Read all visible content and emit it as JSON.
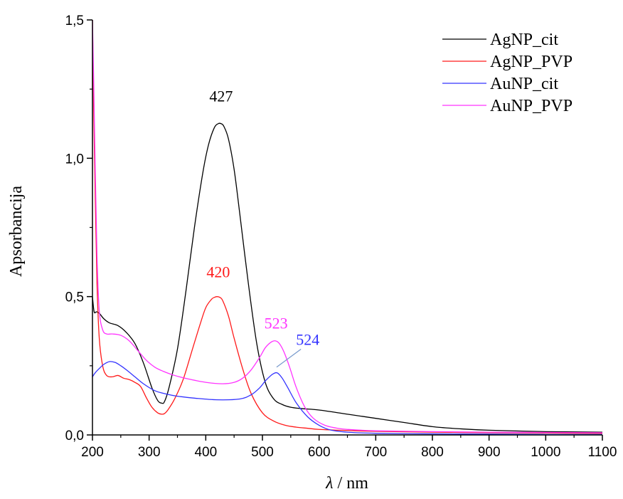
{
  "chart_data": {
    "type": "line",
    "xlabel_symbol": "λ",
    "xlabel_unit": " / nm",
    "ylabel": "Apsorbancija",
    "xlim": [
      200,
      1100
    ],
    "ylim": [
      0,
      1.5
    ],
    "x_ticks": [
      200,
      300,
      400,
      500,
      600,
      700,
      800,
      900,
      1000,
      1100
    ],
    "x_tick_labels": [
      "200",
      "300",
      "400",
      "500",
      "600",
      "700",
      "800",
      "900",
      "1000",
      "1100"
    ],
    "y_ticks": [
      0,
      0.5,
      1.0,
      1.5
    ],
    "y_tick_labels": [
      "0,0",
      "0,5",
      "1,0",
      "1,5"
    ],
    "legend_position": "top-right",
    "grid": false,
    "series": [
      {
        "name": "AgNP_cit",
        "color": "#000000",
        "x": [
          200,
          203,
          207,
          212,
          220,
          230,
          245,
          260,
          275,
          290,
          305,
          315,
          322,
          327,
          335,
          350,
          365,
          380,
          395,
          405,
          415,
          422,
          427,
          432,
          440,
          450,
          460,
          475,
          490,
          505,
          520,
          535,
          550,
          570,
          600,
          650,
          700,
          750,
          800,
          850,
          900,
          1000,
          1100
        ],
        "y": [
          0.5,
          0.445,
          0.445,
          0.44,
          0.42,
          0.405,
          0.395,
          0.37,
          0.33,
          0.26,
          0.17,
          0.125,
          0.115,
          0.12,
          0.17,
          0.31,
          0.52,
          0.75,
          0.95,
          1.05,
          1.11,
          1.125,
          1.125,
          1.115,
          1.07,
          0.96,
          0.8,
          0.55,
          0.33,
          0.19,
          0.13,
          0.11,
          0.1,
          0.095,
          0.09,
          0.075,
          0.06,
          0.045,
          0.03,
          0.022,
          0.017,
          0.012,
          0.01
        ]
      },
      {
        "name": "AgNP_PVP",
        "color": "#ff1a1a",
        "x": [
          200,
          202,
          205,
          208,
          212,
          218,
          225,
          235,
          245,
          255,
          265,
          275,
          285,
          295,
          305,
          315,
          322,
          327,
          333,
          345,
          360,
          375,
          390,
          400,
          410,
          415,
          420,
          425,
          430,
          440,
          450,
          465,
          480,
          500,
          520,
          540,
          560,
          580,
          600,
          650,
          700,
          800,
          900,
          1000,
          1100
        ],
        "y": [
          1.5,
          1.2,
          0.85,
          0.55,
          0.35,
          0.25,
          0.215,
          0.21,
          0.215,
          0.205,
          0.2,
          0.19,
          0.175,
          0.135,
          0.1,
          0.08,
          0.075,
          0.077,
          0.09,
          0.13,
          0.2,
          0.3,
          0.4,
          0.46,
          0.49,
          0.497,
          0.5,
          0.497,
          0.485,
          0.43,
          0.35,
          0.24,
          0.15,
          0.08,
          0.05,
          0.035,
          0.028,
          0.024,
          0.02,
          0.016,
          0.013,
          0.01,
          0.008,
          0.007,
          0.006
        ]
      },
      {
        "name": "AuNP_cit",
        "color": "#3333ff",
        "x": [
          200,
          205,
          212,
          220,
          230,
          240,
          250,
          260,
          275,
          290,
          310,
          330,
          350,
          380,
          420,
          460,
          480,
          495,
          505,
          515,
          520,
          524,
          528,
          535,
          545,
          560,
          580,
          600,
          620,
          650,
          700,
          800,
          900,
          1000,
          1100
        ],
        "y": [
          0.21,
          0.225,
          0.24,
          0.255,
          0.265,
          0.262,
          0.25,
          0.235,
          0.21,
          0.185,
          0.16,
          0.148,
          0.14,
          0.133,
          0.127,
          0.13,
          0.145,
          0.17,
          0.195,
          0.215,
          0.222,
          0.225,
          0.222,
          0.205,
          0.17,
          0.115,
          0.065,
          0.035,
          0.018,
          0.01,
          0.006,
          0.004,
          0.003,
          0.002,
          0.002
        ]
      },
      {
        "name": "AuNP_PVP",
        "color": "#ff33ff",
        "x": [
          200,
          202,
          205,
          208,
          212,
          218,
          225,
          235,
          250,
          265,
          280,
          295,
          310,
          325,
          345,
          370,
          400,
          430,
          450,
          465,
          480,
          495,
          505,
          515,
          523,
          530,
          538,
          548,
          560,
          575,
          590,
          610,
          630,
          650,
          700,
          800,
          900,
          1000,
          1100
        ],
        "y": [
          1.5,
          1.3,
          0.95,
          0.65,
          0.45,
          0.38,
          0.365,
          0.365,
          0.36,
          0.34,
          0.305,
          0.27,
          0.245,
          0.23,
          0.215,
          0.202,
          0.19,
          0.185,
          0.19,
          0.205,
          0.235,
          0.28,
          0.315,
          0.335,
          0.34,
          0.33,
          0.3,
          0.245,
          0.17,
          0.1,
          0.06,
          0.035,
          0.025,
          0.02,
          0.015,
          0.012,
          0.01,
          0.009,
          0.008
        ]
      }
    ],
    "annotations": [
      {
        "text": "427",
        "x": 427,
        "y": 1.205,
        "color": "#000000"
      },
      {
        "text": "420",
        "x": 422,
        "y": 0.57,
        "color": "#ff1a1a"
      },
      {
        "text": "523",
        "x": 524,
        "y": 0.385,
        "color": "#ff33ff"
      },
      {
        "text": "524",
        "x": 580,
        "y": 0.325,
        "color": "#3333ff"
      }
    ],
    "pointer": {
      "color": "#7799cc",
      "x1": 525,
      "y1": 0.245,
      "x2": 568,
      "y2": 0.31
    }
  }
}
